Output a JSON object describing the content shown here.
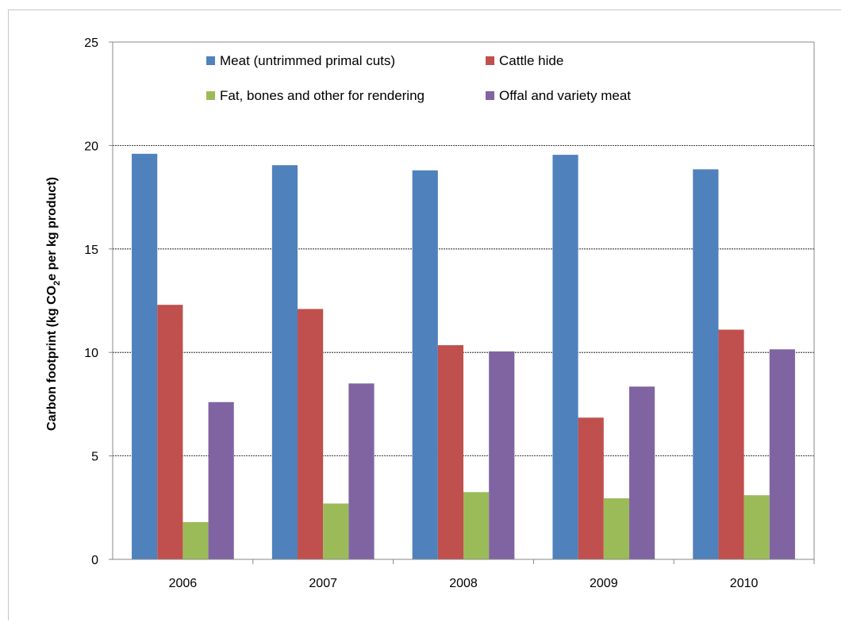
{
  "chart_data": {
    "type": "bar",
    "title": "",
    "xlabel": "",
    "ylabel": {
      "prefix": "Carbon footprint (kg CO",
      "subscript": "2",
      "suffix": "e per kg product)"
    },
    "categories": [
      "2006",
      "2007",
      "2008",
      "2009",
      "2010"
    ],
    "ylim": [
      0,
      25
    ],
    "yticks": [
      0,
      5,
      10,
      15,
      20,
      25
    ],
    "grid": true,
    "legend_position": "top",
    "series": [
      {
        "name": "Meat  (untrimmed primal cuts)",
        "color": "#4F81BD",
        "values": [
          19.6,
          19.05,
          18.8,
          19.55,
          18.85
        ]
      },
      {
        "name": "Cattle hide",
        "color": "#C0504D",
        "values": [
          12.3,
          12.1,
          10.35,
          6.85,
          11.1
        ]
      },
      {
        "name": "Fat, bones and other for rendering",
        "color": "#9BBB59",
        "values": [
          1.8,
          2.7,
          3.25,
          2.95,
          3.1
        ]
      },
      {
        "name": "Offal and variety meat",
        "color": "#8064A2",
        "values": [
          7.6,
          8.5,
          10.05,
          8.35,
          10.15
        ]
      }
    ]
  }
}
